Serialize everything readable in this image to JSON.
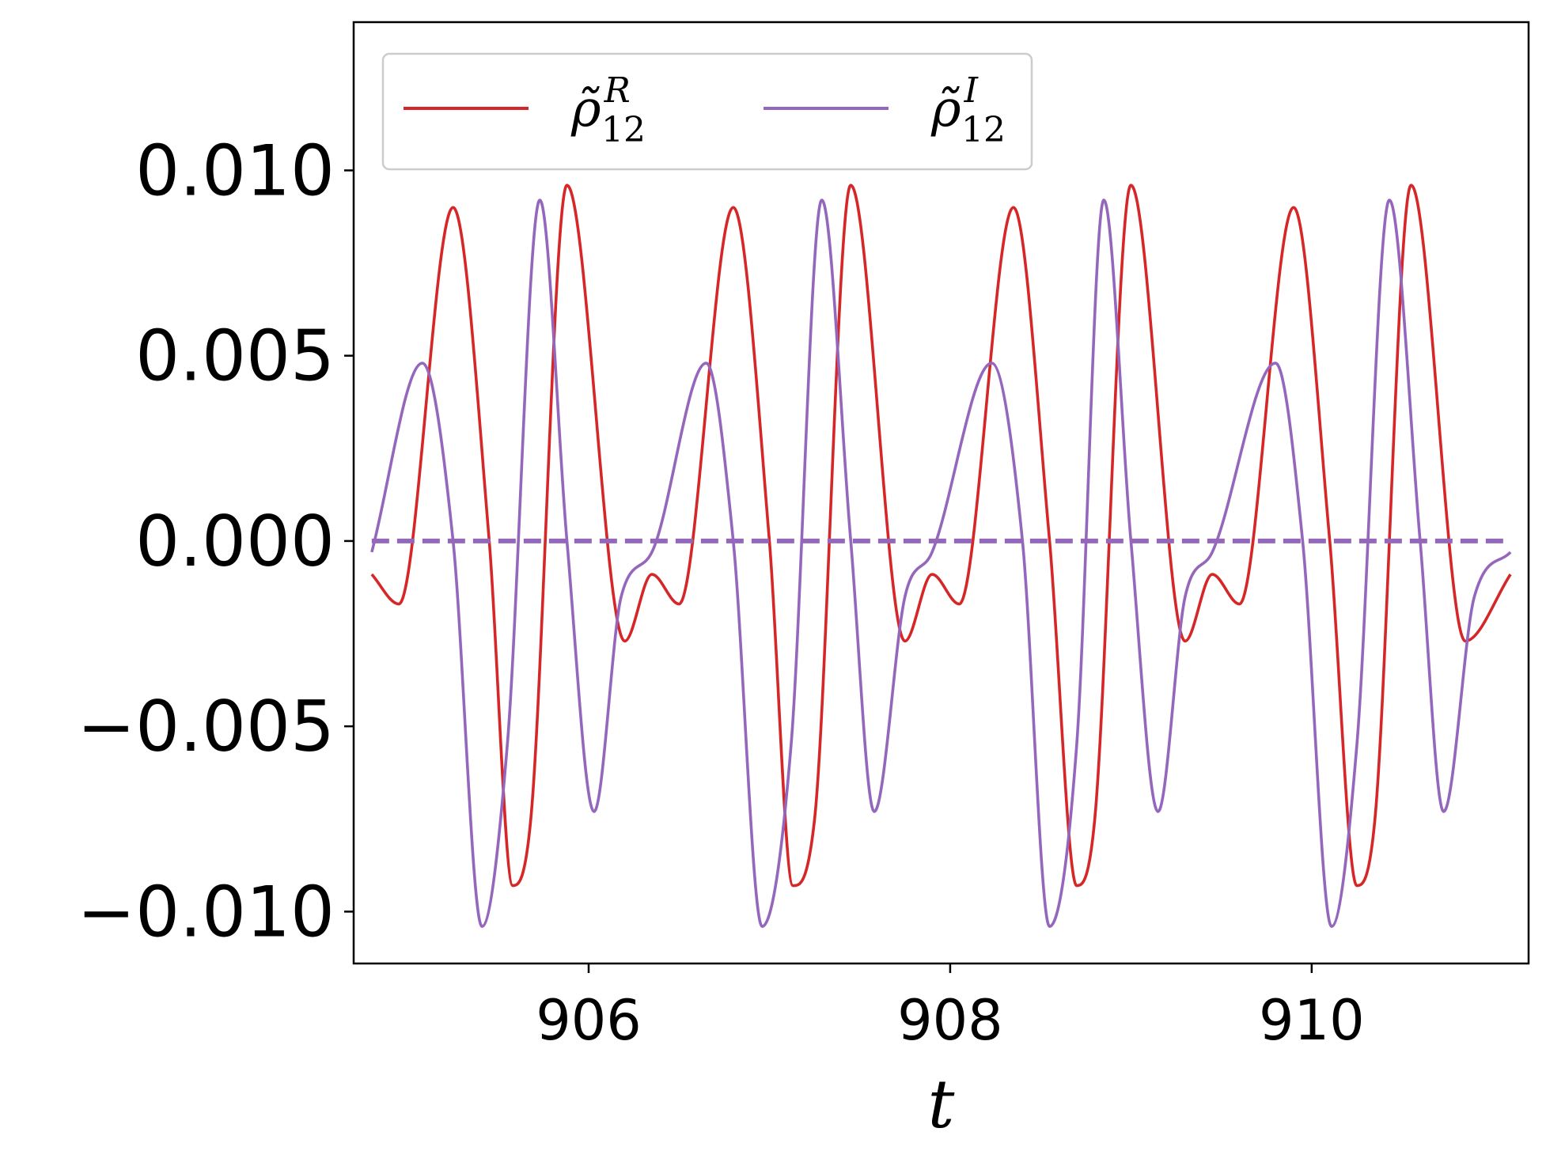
{
  "chart_data": {
    "type": "line",
    "xlabel": "t",
    "ylabel": "",
    "xlim": [
      904.7,
      911.2
    ],
    "ylim": [
      -0.0114,
      0.014
    ],
    "xticks": [
      906,
      908,
      910
    ],
    "yticks": [
      -0.01,
      -0.005,
      0.0,
      0.005,
      0.01
    ],
    "ytick_labels": [
      "−0.010",
      "−0.005",
      "0.000",
      "0.005",
      "0.010"
    ],
    "xtick_labels": [
      "906",
      "908",
      "910"
    ],
    "grid": false,
    "legend_position": "top-left",
    "legend_columns": 2,
    "colors": {
      "real": "#d62728",
      "imag": "#9467bd"
    },
    "series": [
      {
        "name": "ρ̃_12^R",
        "legend_base": "ρ̃",
        "legend_sub": "12",
        "legend_sup": "R",
        "style": "solid",
        "color": "#d62728",
        "x": [
          904.8,
          904.95,
          905.25,
          905.45,
          905.58,
          905.68,
          905.88,
          906.2,
          906.35,
          906.5,
          906.8,
          907.0,
          907.13,
          907.25,
          907.45,
          907.75,
          907.9,
          908.05,
          908.35,
          908.55,
          908.7,
          908.8,
          909.0,
          909.3,
          909.45,
          909.6,
          909.9,
          910.1,
          910.25,
          910.35,
          910.55,
          910.85,
          911.1
        ],
        "y": [
          -0.0009,
          -0.0017,
          0.009,
          0.0,
          -0.0093,
          -0.0075,
          0.0096,
          -0.0027,
          -0.0009,
          -0.0017,
          0.009,
          0.0,
          -0.0093,
          -0.0075,
          0.0096,
          -0.0027,
          -0.0009,
          -0.0017,
          0.009,
          0.0,
          -0.0093,
          -0.0075,
          0.0096,
          -0.0027,
          -0.0009,
          -0.0017,
          0.009,
          0.0,
          -0.0093,
          -0.0075,
          0.0096,
          -0.0027,
          -0.0009
        ]
      },
      {
        "name": "ρ̃_12^I",
        "legend_base": "ρ̃",
        "legend_sub": "12",
        "legend_sup": "I",
        "style": "solid",
        "color": "#9467bd",
        "x": [
          904.8,
          905.08,
          905.25,
          905.41,
          905.55,
          905.73,
          905.88,
          906.03,
          906.18,
          906.35,
          906.65,
          906.8,
          906.96,
          907.12,
          907.29,
          907.45,
          907.58,
          907.75,
          907.9,
          908.23,
          908.4,
          908.55,
          908.7,
          908.85,
          909.0,
          909.15,
          909.3,
          909.45,
          909.8,
          909.95,
          910.11,
          910.25,
          910.43,
          910.6,
          910.73,
          910.9,
          911.1
        ],
        "y": [
          -0.0003,
          0.0048,
          0.0,
          -0.0104,
          -0.0055,
          0.0092,
          0.0,
          -0.0073,
          -0.0015,
          -0.0003,
          0.0048,
          0.0,
          -0.0104,
          -0.0055,
          0.0092,
          0.0,
          -0.0073,
          -0.0015,
          -0.0003,
          0.0048,
          0.0,
          -0.0104,
          -0.0055,
          0.0092,
          0.0,
          -0.0073,
          -0.0015,
          -0.0003,
          0.0048,
          0.0,
          -0.0104,
          -0.0055,
          0.0092,
          0.0,
          -0.0073,
          -0.0015,
          -0.0003
        ]
      },
      {
        "name": "",
        "style": "dashed",
        "color": "#9467bd",
        "x": [
          904.8,
          911.1
        ],
        "y": [
          0.0,
          0.0
        ]
      }
    ]
  }
}
